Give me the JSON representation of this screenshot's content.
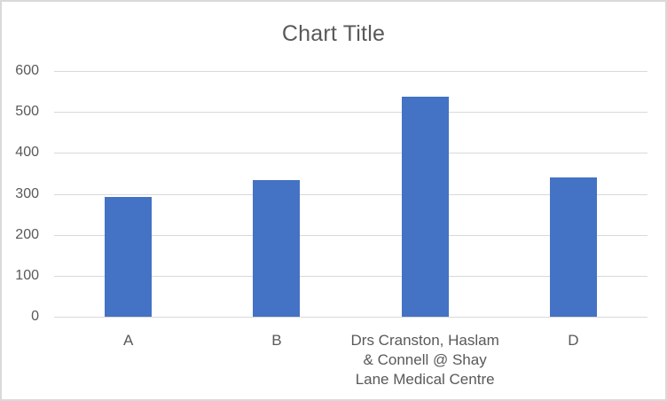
{
  "window": {
    "background": "#ffffff",
    "frame_border_color": "#d9d9d9"
  },
  "chart_data": {
    "type": "bar",
    "title": "Chart Title",
    "categories": [
      "A",
      "B",
      "Drs Cranston, Haslam & Connell @ Shay Lane Medical Centre",
      "D"
    ],
    "category_display_labels": [
      "A",
      "B",
      "Drs Cranston, Haslam\n& Connell @ Shay\nLane Medical Centre",
      "D"
    ],
    "series": [
      {
        "name": "Series 1",
        "values": [
          293,
          334,
          537,
          340
        ]
      }
    ],
    "xlabel": "",
    "ylabel": "",
    "ylim": [
      0,
      600
    ],
    "yticks": [
      0,
      100,
      200,
      300,
      400,
      500,
      600
    ],
    "grid": true,
    "legend": false,
    "colors": {
      "bar": "#4472c4",
      "gridline": "#d9d9d9",
      "axis_line": "#d9d9d9",
      "tick_label": "#595959",
      "title": "#595959"
    }
  }
}
